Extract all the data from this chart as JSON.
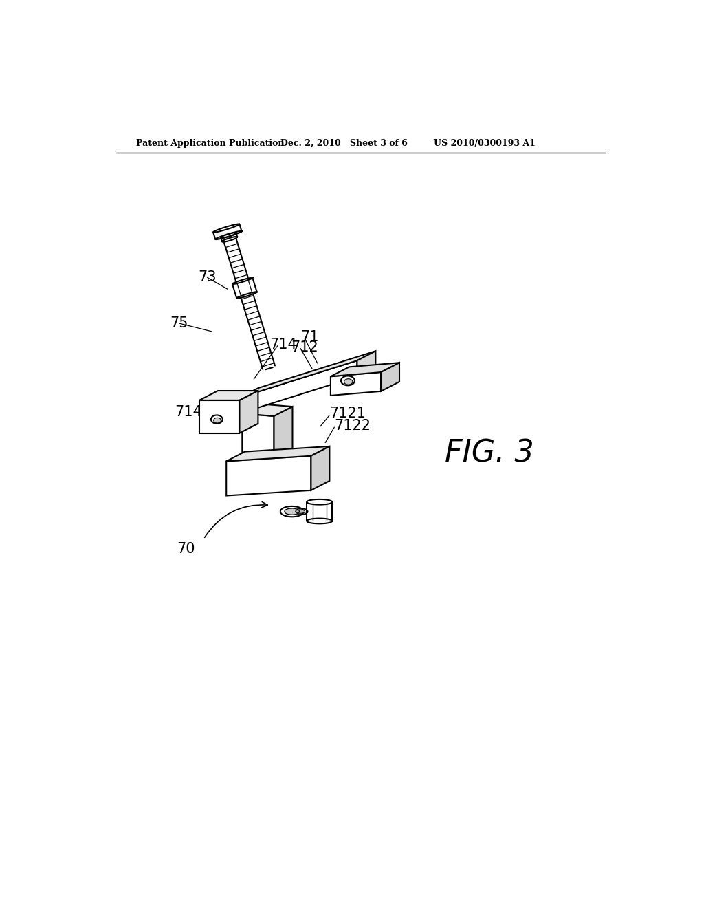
{
  "bg_color": "#ffffff",
  "line_color": "#000000",
  "header_left": "Patent Application Publication",
  "header_mid": "Dec. 2, 2010   Sheet 3 of 6",
  "header_right": "US 2010/0300193 A1",
  "fig_label": "FIG. 3",
  "header_fontsize": 9,
  "label_fontsize": 15,
  "fig_label_fontsize": 32
}
